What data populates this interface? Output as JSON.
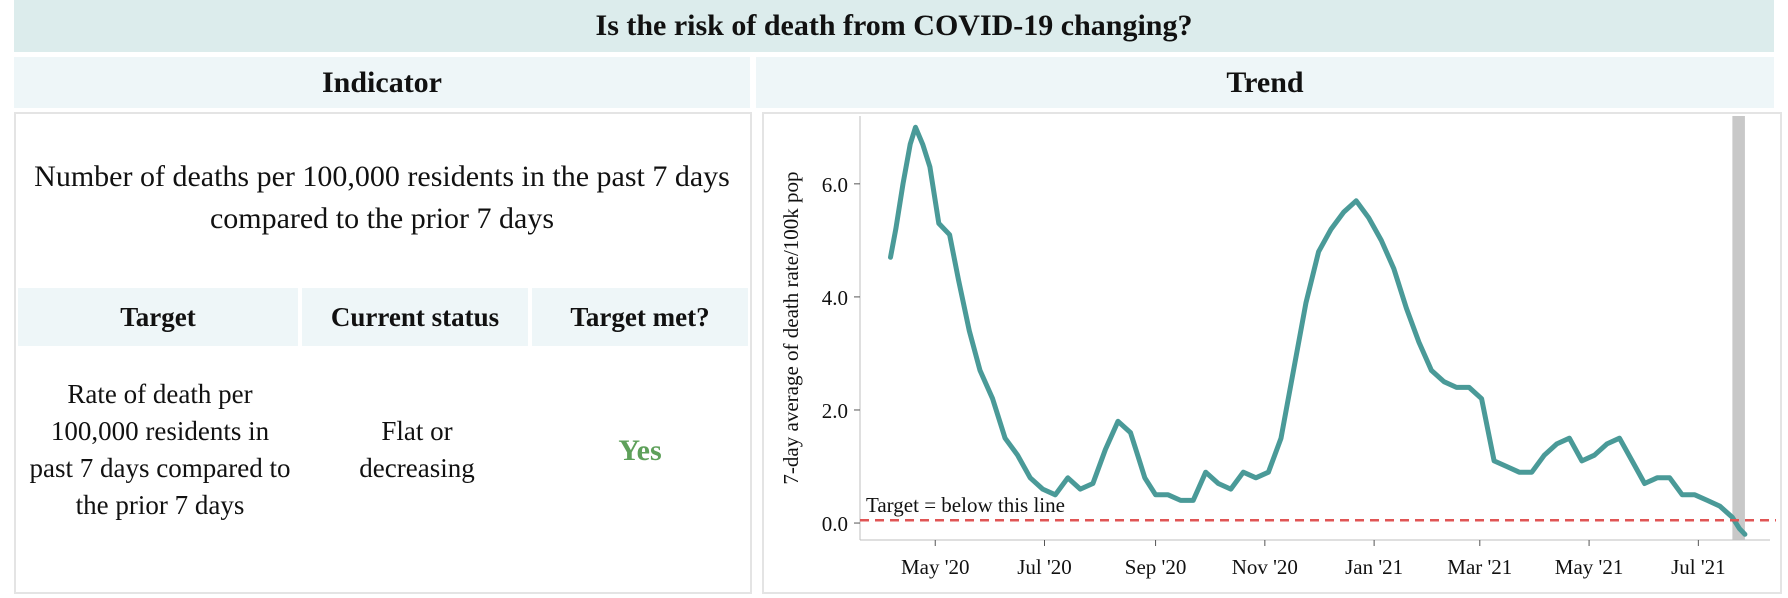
{
  "title": "Is the risk of death from COVID-19 changing?",
  "columns": {
    "indicator": "Indicator",
    "trend": "Trend"
  },
  "indicator": {
    "description": "Number of deaths per 100,000 residents in the past 7 days compared to the prior 7 days",
    "table": {
      "headers": [
        "Target",
        "Current status",
        "Target met?"
      ],
      "row": {
        "target": "Rate of death per 100,000 residents in past 7 days compared to the prior 7 days",
        "status": "Flat or decreasing",
        "met": "Yes"
      }
    }
  },
  "colors": {
    "line": "#4a9a98",
    "target_line": "#e05555",
    "met_yes": "#5ea05a",
    "highlight_band": "#c8c8c8"
  },
  "chart_data": {
    "type": "line",
    "ylabel": "7-day average of death rate/100k pop",
    "xlabel": "",
    "ylim": [
      -0.3,
      7.2
    ],
    "yticks": [
      0.0,
      2.0,
      4.0,
      6.0
    ],
    "ytick_labels": [
      "0.0",
      "2.0",
      "4.0",
      "6.0"
    ],
    "xlim": [
      "2020-03-20",
      "2021-08-10"
    ],
    "xticks": [
      "2020-05-01",
      "2020-07-01",
      "2020-09-01",
      "2020-11-01",
      "2021-01-01",
      "2021-03-01",
      "2021-05-01",
      "2021-07-01"
    ],
    "xtick_labels": [
      "May '20",
      "Jul '20",
      "Sep '20",
      "Nov '20",
      "Jan '21",
      "Mar '21",
      "May '21",
      "Jul '21"
    ],
    "target": {
      "value": 0.05,
      "label": "Target = below this line"
    },
    "highlight_band": [
      "2021-07-20",
      "2021-07-27"
    ],
    "series": [
      {
        "x": [
          "2020-04-06",
          "2020-04-09",
          "2020-04-13",
          "2020-04-17",
          "2020-04-20",
          "2020-04-24",
          "2020-04-28",
          "2020-05-03",
          "2020-05-09",
          "2020-05-14",
          "2020-05-20",
          "2020-05-26",
          "2020-06-02",
          "2020-06-09",
          "2020-06-16",
          "2020-06-23",
          "2020-06-30",
          "2020-07-07",
          "2020-07-14",
          "2020-07-21",
          "2020-07-28",
          "2020-08-04",
          "2020-08-11",
          "2020-08-18",
          "2020-08-22",
          "2020-08-26",
          "2020-09-01",
          "2020-09-08",
          "2020-09-15",
          "2020-09-22",
          "2020-09-29",
          "2020-10-06",
          "2020-10-13",
          "2020-10-20",
          "2020-10-27",
          "2020-11-03",
          "2020-11-10",
          "2020-11-17",
          "2020-11-24",
          "2020-12-01",
          "2020-12-08",
          "2020-12-15",
          "2020-12-22",
          "2020-12-29",
          "2021-01-05",
          "2021-01-12",
          "2021-01-19",
          "2021-01-26",
          "2021-02-02",
          "2021-02-09",
          "2021-02-16",
          "2021-02-23",
          "2021-03-02",
          "2021-03-09",
          "2021-03-16",
          "2021-03-23",
          "2021-03-30",
          "2021-04-06",
          "2021-04-13",
          "2021-04-20",
          "2021-04-27",
          "2021-05-04",
          "2021-05-11",
          "2021-05-18",
          "2021-05-25",
          "2021-06-01",
          "2021-06-08",
          "2021-06-15",
          "2021-06-22",
          "2021-06-29",
          "2021-07-06",
          "2021-07-13",
          "2021-07-20",
          "2021-07-24",
          "2021-07-27"
        ],
        "y": [
          4.7,
          5.2,
          6.0,
          6.7,
          7.0,
          6.7,
          6.3,
          5.3,
          5.1,
          4.3,
          3.4,
          2.7,
          2.2,
          1.5,
          1.2,
          0.8,
          0.6,
          0.5,
          0.8,
          0.6,
          0.7,
          1.3,
          1.8,
          1.6,
          1.2,
          0.8,
          0.5,
          0.5,
          0.4,
          0.4,
          0.9,
          0.7,
          0.6,
          0.9,
          0.8,
          0.9,
          1.5,
          2.7,
          3.9,
          4.8,
          5.2,
          5.5,
          5.7,
          5.4,
          5.0,
          4.5,
          3.8,
          3.2,
          2.7,
          2.5,
          2.4,
          2.4,
          2.2,
          1.1,
          1.0,
          0.9,
          0.9,
          1.2,
          1.4,
          1.5,
          1.1,
          1.2,
          1.4,
          1.5,
          1.1,
          0.7,
          0.8,
          0.8,
          0.5,
          0.5,
          0.4,
          0.3,
          0.1,
          -0.1,
          -0.2
        ]
      }
    ]
  }
}
